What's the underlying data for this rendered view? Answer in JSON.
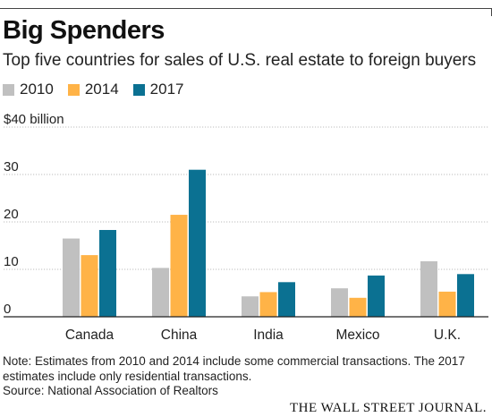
{
  "header": {
    "title": "Big Spenders",
    "subtitle": "Top five countries for sales of U.S. real estate to foreign buyers"
  },
  "chart_data": {
    "type": "bar",
    "categories": [
      "Canada",
      "China",
      "India",
      "Mexico",
      "U.K."
    ],
    "series": [
      {
        "name": "2010",
        "color": "#c0c0c0",
        "values": [
          16.5,
          10.3,
          4.3,
          6.0,
          11.7
        ]
      },
      {
        "name": "2014",
        "color": "#ffb347",
        "values": [
          13.0,
          21.5,
          5.2,
          4.0,
          5.3
        ]
      },
      {
        "name": "2017",
        "color": "#0b7192",
        "values": [
          18.3,
          31.0,
          7.3,
          8.7,
          9.0
        ]
      }
    ],
    "ylim": [
      0,
      40
    ],
    "yticks": [
      0,
      10,
      20,
      30,
      40
    ],
    "ytick_labels": [
      "0",
      "10",
      "20",
      "30",
      "$40 billion"
    ],
    "legend": "top-left",
    "grid": true
  },
  "footer": {
    "note": "Note: Estimates from 2010 and 2014 include some commercial transactions. The 2017 estimates include only residential transactions.",
    "source": "Source: National Association of Realtors",
    "logo": "THE WALL STREET JOURNAL."
  }
}
